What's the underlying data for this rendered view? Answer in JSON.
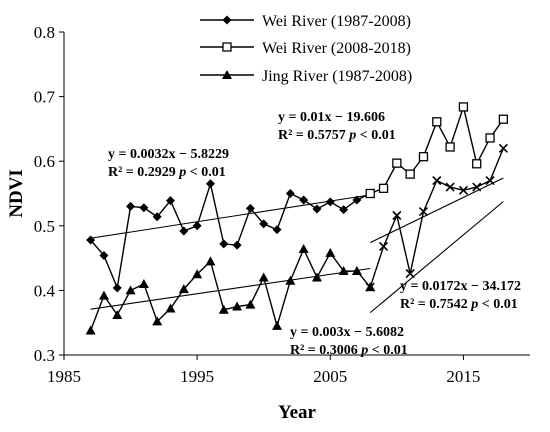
{
  "chart_data": {
    "type": "line",
    "xlabel": "Year",
    "ylabel": "NDVI",
    "xlim": [
      1985,
      2020
    ],
    "ylim": [
      0.3,
      0.8
    ],
    "xticks": [
      "1985",
      "1995",
      "2005",
      "2015"
    ],
    "yticks": [
      "0.3",
      "0.4",
      "0.5",
      "0.6",
      "0.7",
      "0.8"
    ],
    "grid": false,
    "legend_position": "top-center",
    "series": [
      {
        "name": "Wei River (1987-2008)",
        "marker": "diamond",
        "x": [
          1987,
          1988,
          1989,
          1990,
          1991,
          1992,
          1993,
          1994,
          1995,
          1996,
          1997,
          1998,
          1999,
          2000,
          2001,
          2002,
          2003,
          2004,
          2005,
          2006,
          2007,
          2008
        ],
        "values": [
          0.478,
          0.454,
          0.404,
          0.53,
          0.528,
          0.514,
          0.539,
          0.492,
          0.5,
          0.565,
          0.472,
          0.47,
          0.527,
          0.503,
          0.494,
          0.55,
          0.54,
          0.526,
          0.537,
          0.525,
          0.54,
          0.55
        ]
      },
      {
        "name": "Wei River (2008-2018)",
        "marker": "square-open",
        "x": [
          2008,
          2009,
          2010,
          2011,
          2012,
          2013,
          2014,
          2015,
          2016,
          2017,
          2018
        ],
        "values": [
          0.55,
          0.558,
          0.597,
          0.58,
          0.607,
          0.661,
          0.622,
          0.684,
          0.596,
          0.636,
          0.665
        ]
      },
      {
        "name": "Jing River (1987-2008)",
        "marker": "triangle",
        "x": [
          1987,
          1988,
          1989,
          1990,
          1991,
          1992,
          1993,
          1994,
          1995,
          1996,
          1997,
          1998,
          1999,
          2000,
          2001,
          2002,
          2003,
          2004,
          2005,
          2006,
          2007,
          2008
        ],
        "values": [
          0.338,
          0.392,
          0.362,
          0.4,
          0.41,
          0.352,
          0.372,
          0.402,
          0.425,
          0.445,
          0.37,
          0.375,
          0.378,
          0.42,
          0.345,
          0.415,
          0.464,
          0.42,
          0.458,
          0.43,
          0.43,
          0.405
        ]
      },
      {
        "name": "",
        "marker": "x",
        "x": [
          2008,
          2009,
          2010,
          2011,
          2012,
          2013,
          2014,
          2015,
          2016,
          2017,
          2018
        ],
        "values": [
          0.405,
          0.468,
          0.516,
          0.426,
          0.522,
          0.57,
          0.56,
          0.555,
          0.56,
          0.57,
          0.62
        ]
      }
    ],
    "trendlines": [
      {
        "x": [
          1987,
          2008
        ],
        "values": [
          0.4807,
          0.5479
        ]
      },
      {
        "x": [
          2008,
          2018
        ],
        "values": [
          0.474,
          0.574
        ]
      },
      {
        "x": [
          1987,
          2008
        ],
        "values": [
          0.3709,
          0.4339
        ]
      },
      {
        "x": [
          2008,
          2018
        ],
        "values": [
          0.3656,
          0.5376
        ]
      }
    ],
    "annotations": [
      {
        "line1": "y = 0.0032x − 5.8229",
        "line2a": "R² = 0.2929",
        "line2b": "p",
        "line2c": " < 0.01"
      },
      {
        "line1": "y = 0.01x − 19.606",
        "line2a": "R² = 0.5757",
        "line2b": "p",
        "line2c": " < 0.01"
      },
      {
        "line1": "y = 0.003x − 5.6082",
        "line2a": "R² = 0.3006",
        "line2b": "p",
        "line2c": " < 0.01"
      },
      {
        "line1": "y = 0.0172x − 34.172",
        "line2a": "R² = 0.7542",
        "line2b": "p",
        "line2c": " < 0.01"
      }
    ]
  }
}
